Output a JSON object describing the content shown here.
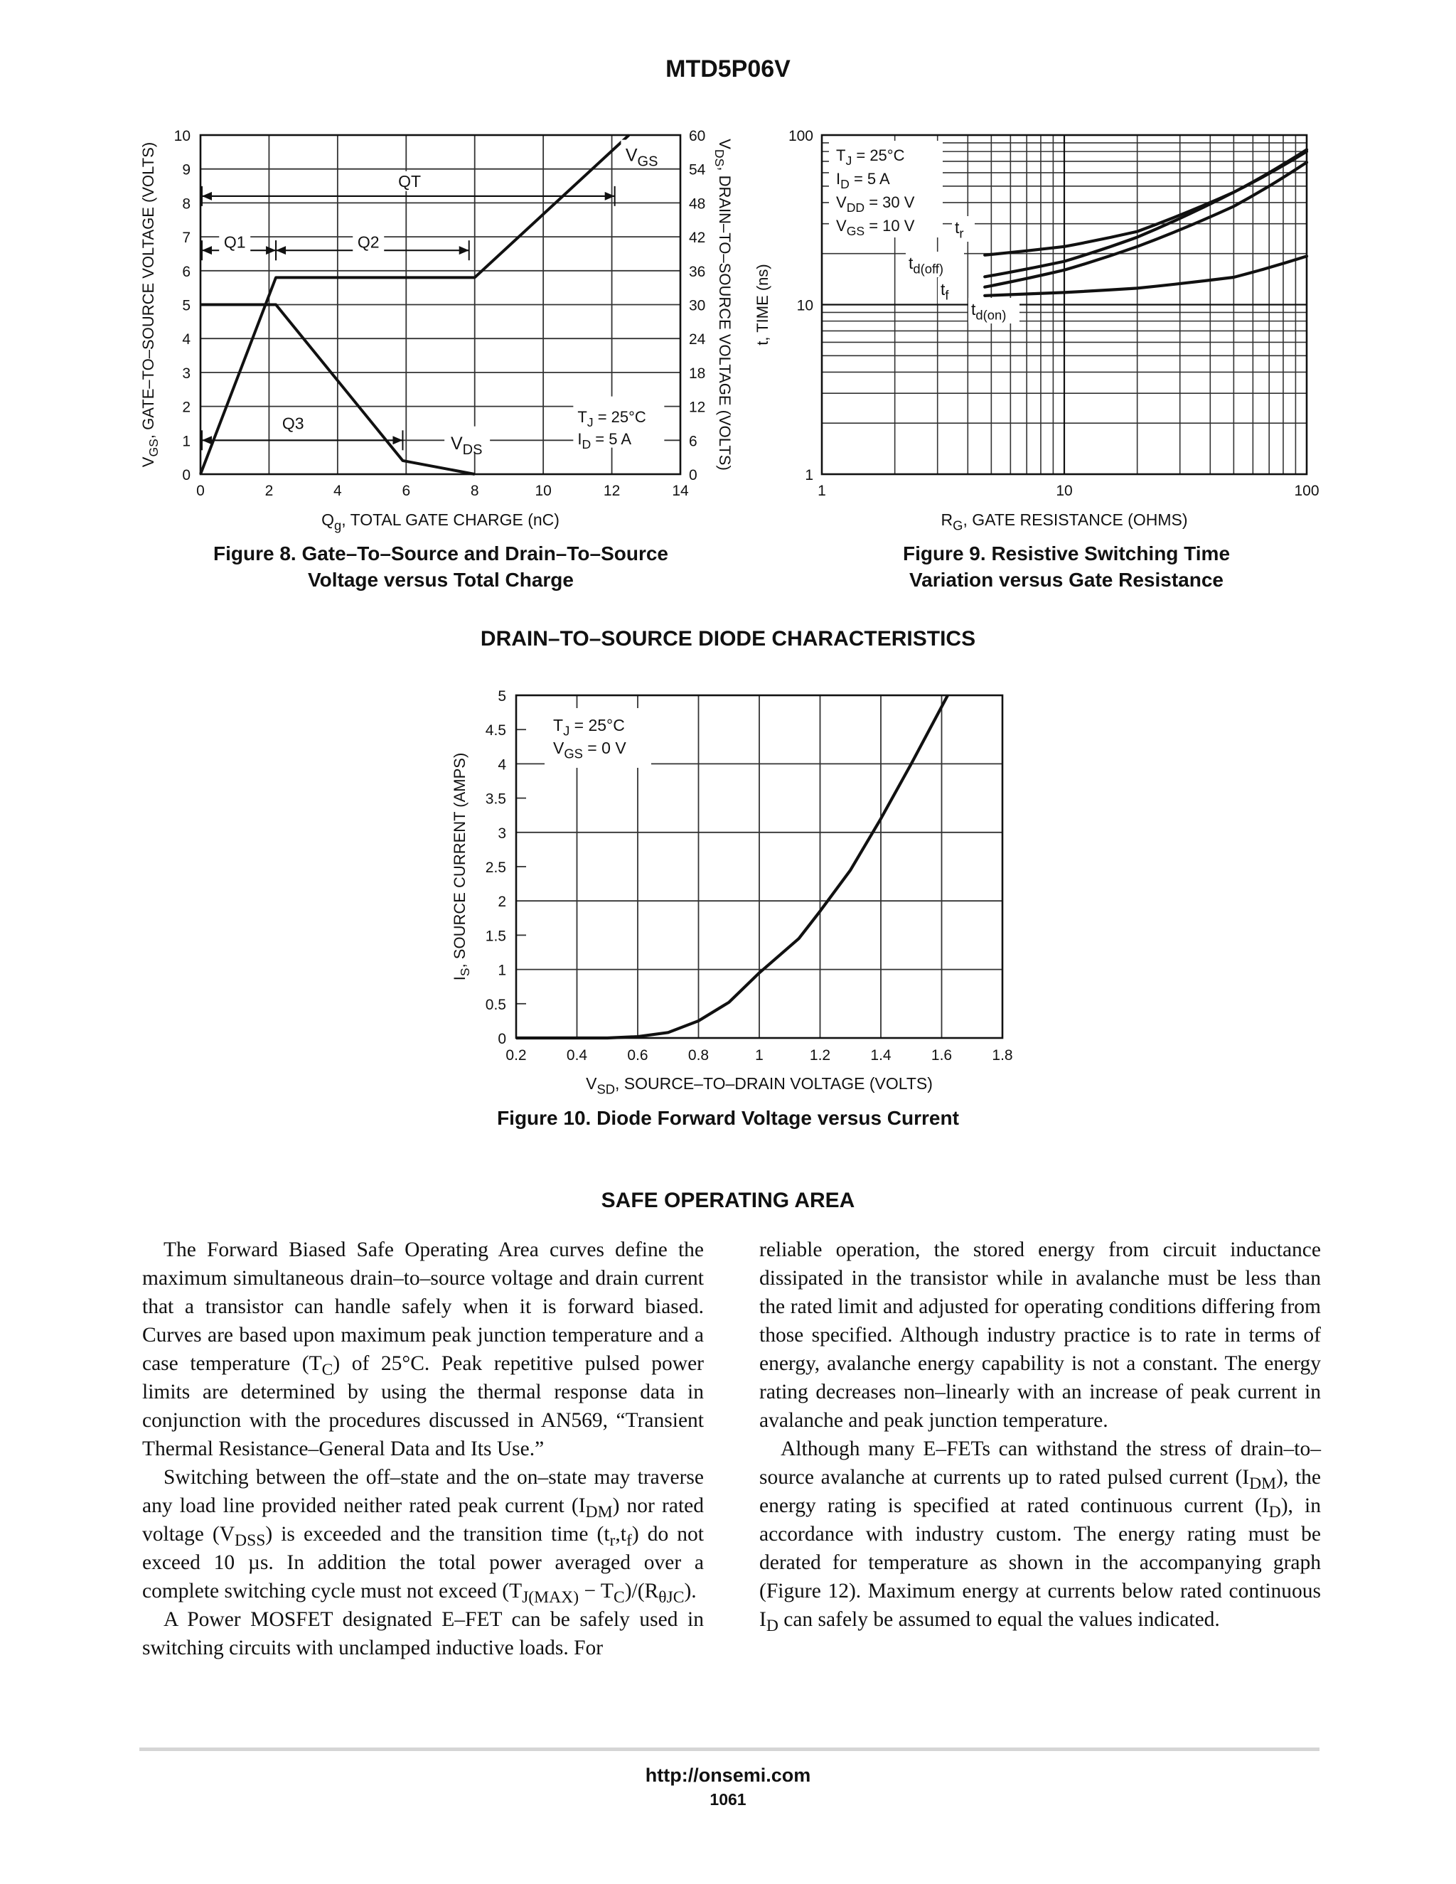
{
  "header": {
    "title": "MTD5P06V"
  },
  "figure8": {
    "caption_line1": "Figure 8. Gate–To–Source and Drain–To–Source",
    "caption_line2": "Voltage versus Total Charge",
    "ylabel_left_sub": "GS",
    "ylabel_left_rest": ", GATE–TO–SOURCE VOLTAGE (VOLTS)",
    "ylabel_right_sub": "DS",
    "ylabel_right_rest": ", DRAIN–TO–SOURCE VOLTAGE (VOLTS)",
    "xlabel_sub": "g",
    "xlabel_rest": ", TOTAL GATE CHARGE (nC)",
    "labels": {
      "qt": "QT",
      "q1": "Q1",
      "q2": "Q2",
      "q3": "Q3",
      "vgs_sub": "GS",
      "vds_sub": "DS",
      "tj": "J",
      "tj_rest": " = 25°C",
      "id": "D",
      "id_rest": " = 5 A"
    }
  },
  "figure9": {
    "caption_line1": "Figure 9. Resistive Switching Time",
    "caption_line2": "Variation versus Gate Resistance",
    "ylabel": "t, TIME (ns)",
    "xlabel_sub": "G",
    "xlabel_rest": ", GATE RESISTANCE (OHMS)",
    "conditions": [
      {
        "sub": "J",
        "rest": " = 25°C"
      },
      {
        "sub": "D",
        "rest": " = 5 A"
      },
      {
        "sub": "DD",
        "rest": " = 30 V"
      },
      {
        "sub": "GS",
        "rest": " = 10 V"
      }
    ],
    "curve_labels": {
      "tr": "r",
      "tdoff": "d(off)",
      "tf": "f",
      "tdon": "d(on)"
    }
  },
  "diode_section": {
    "title": "DRAIN–TO–SOURCE DIODE CHARACTERISTICS"
  },
  "figure10": {
    "caption": "Figure 10. Diode Forward Voltage versus Current",
    "ylabel_sub": "S",
    "ylabel_rest": ", SOURCE CURRENT (AMPS)",
    "xlabel_sub": "SD",
    "xlabel_rest": ", SOURCE–TO–DRAIN VOLTAGE (VOLTS)",
    "conditions": [
      {
        "sub": "J",
        "rest": " = 25°C"
      },
      {
        "sub": "GS",
        "rest": " = 0 V"
      }
    ]
  },
  "chart_data": [
    {
      "type": "line",
      "title": "Figure 8. Gate–To–Source and Drain–To–Source Voltage versus Total Charge",
      "xlabel": "Qg, TOTAL GATE CHARGE (nC)",
      "ylabel": "VGS, GATE–TO–SOURCE VOLTAGE (VOLTS)",
      "y2label": "VDS, DRAIN–TO–SOURCE VOLTAGE (VOLTS)",
      "xlim": [
        0,
        14
      ],
      "ylim": [
        0,
        10
      ],
      "y2lim": [
        0,
        60
      ],
      "x_ticks": [
        0,
        2,
        4,
        6,
        8,
        10,
        12,
        14
      ],
      "y_ticks": [
        0,
        1,
        2,
        3,
        4,
        5,
        6,
        7,
        8,
        9,
        10
      ],
      "y2_ticks": [
        0,
        6,
        12,
        18,
        24,
        30,
        36,
        42,
        48,
        54,
        60
      ],
      "grid": true,
      "series": [
        {
          "name": "VGS",
          "axis": "left",
          "x": [
            0,
            2.2,
            8,
            12.5
          ],
          "y": [
            0,
            5.8,
            5.8,
            10
          ]
        },
        {
          "name": "VDS",
          "axis": "right",
          "x": [
            0,
            2.2,
            5.9,
            8
          ],
          "y": [
            30,
            30,
            2.4,
            0
          ]
        }
      ],
      "annotations": [
        {
          "text": "QT",
          "x_range": [
            0,
            12.5
          ],
          "y": 8.2
        },
        {
          "text": "Q1",
          "x_range": [
            0,
            2.2
          ],
          "y": 6.6
        },
        {
          "text": "Q2",
          "x_range": [
            2.2,
            8
          ],
          "y": 6.6
        },
        {
          "text": "Q3",
          "x_range": [
            0,
            5.9
          ],
          "y": 1.1
        },
        {
          "text": "TJ = 25°C",
          "x": 11,
          "y": 1.7
        },
        {
          "text": "ID = 5 A",
          "x": 11,
          "y": 1.1
        }
      ]
    },
    {
      "type": "line",
      "title": "Figure 9. Resistive Switching Time Variation versus Gate Resistance",
      "xlabel": "RG, GATE RESISTANCE (OHMS)",
      "ylabel": "t, TIME (ns)",
      "x_scale": "log",
      "y_scale": "log",
      "xlim": [
        1,
        100
      ],
      "ylim": [
        1,
        100
      ],
      "x_ticks": [
        1,
        10,
        100
      ],
      "y_ticks": [
        1,
        10,
        100
      ],
      "grid": true,
      "series": [
        {
          "name": "tr",
          "x": [
            4.7,
            10,
            20,
            50,
            100
          ],
          "y": [
            19.6,
            22,
            27,
            46,
            80
          ]
        },
        {
          "name": "td(off)",
          "x": [
            4.7,
            10,
            20,
            50,
            100
          ],
          "y": [
            14.6,
            18,
            25,
            46,
            82
          ]
        },
        {
          "name": "tf",
          "x": [
            4.7,
            10,
            20,
            50,
            100
          ],
          "y": [
            12.7,
            16,
            22,
            38,
            69
          ]
        },
        {
          "name": "td(on)",
          "x": [
            4.7,
            10,
            20,
            50,
            100
          ],
          "y": [
            11.3,
            11.8,
            12.5,
            14.5,
            19.3
          ]
        }
      ],
      "annotations": [
        "TJ = 25°C",
        "ID = 5 A",
        "VDD = 30 V",
        "VGS = 10 V"
      ]
    },
    {
      "type": "line",
      "title": "Figure 10. Diode Forward Voltage versus Current",
      "xlabel": "VSD, SOURCE–TO–DRAIN VOLTAGE (VOLTS)",
      "ylabel": "IS, SOURCE CURRENT (AMPS)",
      "xlim": [
        0.2,
        1.8
      ],
      "ylim": [
        0,
        5
      ],
      "x_ticks": [
        0.2,
        0.4,
        0.6,
        0.8,
        1,
        1.2,
        1.4,
        1.6,
        1.8
      ],
      "y_ticks": [
        0,
        0.5,
        1,
        1.5,
        2,
        2.5,
        3,
        3.5,
        4,
        4.5,
        5
      ],
      "grid": true,
      "series": [
        {
          "name": "IS",
          "x": [
            0.2,
            0.5,
            0.6,
            0.7,
            0.8,
            0.9,
            1.0,
            1.13,
            1.2,
            1.3,
            1.4,
            1.5,
            1.62
          ],
          "y": [
            0,
            0,
            0.02,
            0.08,
            0.25,
            0.52,
            0.95,
            1.45,
            1.85,
            2.45,
            3.2,
            4.0,
            5.0
          ]
        }
      ],
      "annotations": [
        "TJ = 25°C",
        "VGS = 0 V"
      ]
    }
  ],
  "soa": {
    "title": "SAFE OPERATING AREA",
    "left_col": [
      {
        "segments": [
          {
            "t": "The Forward Biased Safe Operating Area curves define the maximum simultaneous drain–to–source voltage and drain current that a transistor can handle safely when it is forward biased. Curves are based upon maximum peak junction temperature and a case temperature (T"
          },
          {
            "t": "C",
            "sub": true
          },
          {
            "t": ") of 25°C. Peak repetitive pulsed power limits are determined by using the thermal response data in conjunction with the procedures discussed in AN569, “Transient Thermal Resistance–General Data and Its Use.”"
          }
        ]
      },
      {
        "segments": [
          {
            "t": "Switching between the off–state and the on–state may traverse any load line provided neither rated peak current (I"
          },
          {
            "t": "DM",
            "sub": true
          },
          {
            "t": ") nor rated voltage (V"
          },
          {
            "t": "DSS",
            "sub": true
          },
          {
            "t": ") is exceeded and the transition time (t"
          },
          {
            "t": "r",
            "sub": true
          },
          {
            "t": ",t"
          },
          {
            "t": "f",
            "sub": true
          },
          {
            "t": ") do not exceed 10 µs. In addition the total power averaged over a complete switching cycle must not exceed (T"
          },
          {
            "t": "J(MAX)",
            "sub": true
          },
          {
            "t": " − T"
          },
          {
            "t": "C",
            "sub": true
          },
          {
            "t": ")/(R"
          },
          {
            "t": "θJC",
            "sub": true
          },
          {
            "t": ")."
          }
        ]
      },
      {
        "segments": [
          {
            "t": "A Power MOSFET designated E–FET can be safely used in switching circuits with unclamped inductive loads. For"
          }
        ]
      }
    ],
    "right_col": [
      {
        "noindent": true,
        "segments": [
          {
            "t": "reliable operation, the stored energy from circuit inductance dissipated in the transistor while in avalanche must be less than the rated limit and adjusted for operating conditions differing from those specified. Although industry practice is to rate in terms of energy, avalanche energy capability is not a constant. The energy rating decreases non–linearly with an increase of peak current in avalanche and peak junction temperature."
          }
        ]
      },
      {
        "segments": [
          {
            "t": "Although many E–FETs can withstand the stress of drain–to–source avalanche at currents up to rated pulsed current (I"
          },
          {
            "t": "DM",
            "sub": true
          },
          {
            "t": "), the energy rating is specified at rated continuous current (I"
          },
          {
            "t": "D",
            "sub": true
          },
          {
            "t": "), in accordance with industry custom. The energy rating must be derated for temperature as shown in the accompanying graph (Figure 12). Maximum energy at currents below rated continuous I"
          },
          {
            "t": "D",
            "sub": true
          },
          {
            "t": " can safely be assumed to equal the values indicated."
          }
        ]
      }
    ]
  },
  "footer": {
    "url": "http://onsemi.com",
    "page": "1061"
  }
}
